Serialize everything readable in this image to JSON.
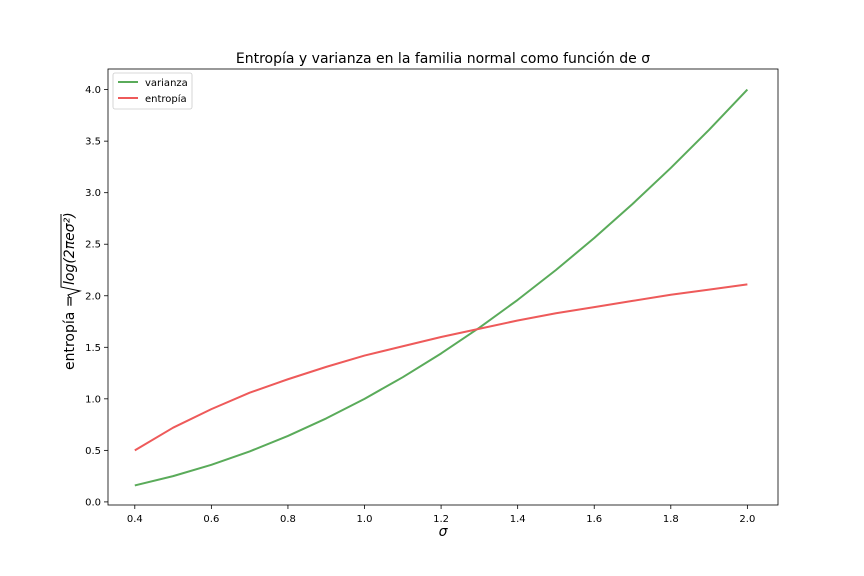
{
  "chart_data": {
    "type": "line",
    "title": "Entropía y varianza en la familia normal como función de σ",
    "xlabel": "σ",
    "ylabel_prefix": "entropía =",
    "ylabel_formula": "log(2πeσ²)",
    "xlim": [
      0.33,
      2.08
    ],
    "ylim": [
      -0.03,
      4.2
    ],
    "xticks": [
      "0.4",
      "0.6",
      "0.8",
      "1.0",
      "1.2",
      "1.4",
      "1.6",
      "1.8",
      "2.0"
    ],
    "yticks": [
      "0.0",
      "0.5",
      "1.0",
      "1.5",
      "2.0",
      "2.5",
      "3.0",
      "3.5",
      "4.0"
    ],
    "grid": false,
    "legend_position": "top-left",
    "x": [
      0.4,
      0.5,
      0.6,
      0.7,
      0.8,
      0.9,
      1.0,
      1.1,
      1.2,
      1.3,
      1.4,
      1.5,
      1.6,
      1.7,
      1.8,
      1.9,
      2.0
    ],
    "series": [
      {
        "name": "varianza",
        "color": "#5aab5a",
        "values": [
          0.16,
          0.25,
          0.36,
          0.49,
          0.64,
          0.81,
          1.0,
          1.21,
          1.44,
          1.69,
          1.96,
          2.25,
          2.56,
          2.89,
          3.24,
          3.61,
          4.0
        ]
      },
      {
        "name": "entropía",
        "color": "#ee5a5a",
        "values": [
          0.5,
          0.72,
          0.9,
          1.06,
          1.19,
          1.31,
          1.42,
          1.51,
          1.6,
          1.68,
          1.76,
          1.83,
          1.89,
          1.95,
          2.01,
          2.06,
          2.11
        ]
      }
    ]
  }
}
